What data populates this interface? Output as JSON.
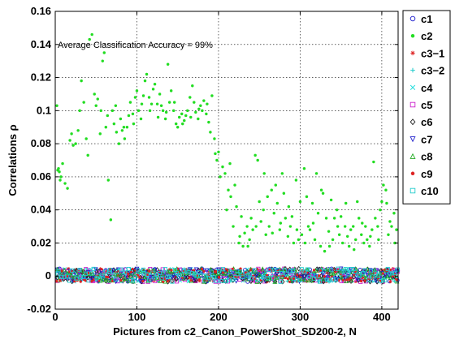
{
  "chart_data": {
    "type": "scatter",
    "xlabel": "Pictures from c2_Canon_PowerShot_SD200-2, N",
    "ylabel": "Correlations ρ",
    "annotation": "Average Classification Accuracy = 99%",
    "xlim": [
      0,
      420
    ],
    "ylim": [
      -0.02,
      0.16
    ],
    "xticks": [
      0,
      100,
      200,
      300,
      400
    ],
    "yticks": [
      -0.02,
      0,
      0.02,
      0.04,
      0.06,
      0.08,
      0.1,
      0.12,
      0.14,
      0.16
    ],
    "xtick_labels": [
      "0",
      "100",
      "200",
      "300",
      "400"
    ],
    "ytick_labels": [
      "-0.02",
      "0",
      "0.02",
      "0.04",
      "0.06",
      "0.08",
      "0.1",
      "0.12",
      "0.14",
      "0.16"
    ],
    "grid": true,
    "legend_position": "right-outside",
    "series": [
      {
        "name": "c1",
        "marker": "circle",
        "color": "#1a1acc"
      },
      {
        "name": "c2",
        "marker": "dot",
        "color": "#22dd22"
      },
      {
        "name": "c3−1",
        "marker": "star",
        "color": "#dd2222"
      },
      {
        "name": "c3−2",
        "marker": "plus",
        "color": "#22cccc"
      },
      {
        "name": "c4",
        "marker": "cross",
        "color": "#22dddd"
      },
      {
        "name": "c5",
        "marker": "square",
        "color": "#cc22cc"
      },
      {
        "name": "c6",
        "marker": "diamond",
        "color": "#222222"
      },
      {
        "name": "c7",
        "marker": "triangle-down",
        "color": "#2222cc"
      },
      {
        "name": "c8",
        "marker": "triangle-up",
        "color": "#22aa22"
      },
      {
        "name": "c9",
        "marker": "dot",
        "color": "#dd2222"
      },
      {
        "name": "c10",
        "marker": "square",
        "color": "#22cccc"
      }
    ],
    "c2_points": [
      [
        2,
        0.103
      ],
      [
        3,
        0.064
      ],
      [
        4,
        0.065
      ],
      [
        5,
        0.063
      ],
      [
        6,
        0.058
      ],
      [
        7,
        0.06
      ],
      [
        9,
        0.068
      ],
      [
        12,
        0.056
      ],
      [
        15,
        0.053
      ],
      [
        18,
        0.082
      ],
      [
        20,
        0.086
      ],
      [
        22,
        0.079
      ],
      [
        25,
        0.08
      ],
      [
        28,
        0.088
      ],
      [
        30,
        0.1
      ],
      [
        32,
        0.118
      ],
      [
        35,
        0.105
      ],
      [
        38,
        0.083
      ],
      [
        40,
        0.073
      ],
      [
        42,
        0.143
      ],
      [
        45,
        0.146
      ],
      [
        48,
        0.11
      ],
      [
        50,
        0.103
      ],
      [
        52,
        0.107
      ],
      [
        55,
        0.086
      ],
      [
        58,
        0.13
      ],
      [
        60,
        0.135
      ],
      [
        62,
        0.09
      ],
      [
        65,
        0.058
      ],
      [
        68,
        0.034
      ],
      [
        70,
        0.1
      ],
      [
        72,
        0.092
      ],
      [
        75,
        0.087
      ],
      [
        78,
        0.08
      ],
      [
        80,
        0.095
      ],
      [
        82,
        0.088
      ],
      [
        85,
        0.083
      ],
      [
        88,
        0.09
      ],
      [
        90,
        0.097
      ],
      [
        92,
        0.105
      ],
      [
        95,
        0.098
      ],
      [
        98,
        0.108
      ],
      [
        100,
        0.112
      ],
      [
        102,
        0.1
      ],
      [
        105,
        0.095
      ],
      [
        108,
        0.109
      ],
      [
        110,
        0.118
      ],
      [
        112,
        0.122
      ],
      [
        115,
        0.108
      ],
      [
        118,
        0.104
      ],
      [
        120,
        0.113
      ],
      [
        122,
        0.116
      ],
      [
        125,
        0.104
      ],
      [
        128,
        0.11
      ],
      [
        130,
        0.103
      ],
      [
        132,
        0.1
      ],
      [
        135,
        0.095
      ],
      [
        138,
        0.128
      ],
      [
        140,
        0.105
      ],
      [
        142,
        0.112
      ],
      [
        145,
        0.1
      ],
      [
        148,
        0.092
      ],
      [
        150,
        0.09
      ],
      [
        152,
        0.096
      ],
      [
        155,
        0.098
      ],
      [
        158,
        0.094
      ],
      [
        160,
        0.097
      ],
      [
        162,
        0.1
      ],
      [
        165,
        0.108
      ],
      [
        168,
        0.115
      ],
      [
        170,
        0.105
      ],
      [
        172,
        0.099
      ],
      [
        175,
        0.095
      ],
      [
        178,
        0.103
      ],
      [
        180,
        0.1
      ],
      [
        182,
        0.106
      ],
      [
        185,
        0.098
      ],
      [
        188,
        0.093
      ],
      [
        190,
        0.087
      ],
      [
        192,
        0.109
      ],
      [
        195,
        0.083
      ],
      [
        198,
        0.07
      ],
      [
        200,
        0.075
      ],
      [
        202,
        0.06
      ],
      [
        205,
        0.066
      ],
      [
        208,
        0.062
      ],
      [
        210,
        0.04
      ],
      [
        212,
        0.052
      ],
      [
        215,
        0.048
      ],
      [
        218,
        0.03
      ],
      [
        220,
        0.055
      ],
      [
        222,
        0.042
      ],
      [
        225,
        0.02
      ],
      [
        228,
        0.036
      ],
      [
        230,
        0.018
      ],
      [
        232,
        0.026
      ],
      [
        235,
        0.03
      ],
      [
        238,
        0.022
      ],
      [
        240,
        0.035
      ],
      [
        242,
        0.028
      ],
      [
        245,
        0.073
      ],
      [
        248,
        0.07
      ],
      [
        250,
        0.045
      ],
      [
        252,
        0.033
      ],
      [
        255,
        0.04
      ],
      [
        258,
        0.025
      ],
      [
        260,
        0.048
      ],
      [
        262,
        0.03
      ],
      [
        265,
        0.052
      ],
      [
        268,
        0.038
      ],
      [
        270,
        0.055
      ],
      [
        272,
        0.044
      ],
      [
        275,
        0.028
      ],
      [
        278,
        0.062
      ],
      [
        280,
        0.05
      ],
      [
        282,
        0.035
      ],
      [
        285,
        0.024
      ],
      [
        288,
        0.03
      ],
      [
        290,
        0.036
      ],
      [
        292,
        0.02
      ],
      [
        295,
        0.058
      ],
      [
        298,
        0.022
      ],
      [
        300,
        0.045
      ],
      [
        302,
        0.025
      ],
      [
        305,
        0.065
      ],
      [
        308,
        0.048
      ],
      [
        310,
        0.03
      ],
      [
        312,
        0.028
      ],
      [
        315,
        0.044
      ],
      [
        318,
        0.022
      ],
      [
        320,
        0.062
      ],
      [
        322,
        0.038
      ],
      [
        325,
        0.018
      ],
      [
        328,
        0.05
      ],
      [
        330,
        0.015
      ],
      [
        332,
        0.035
      ],
      [
        335,
        0.027
      ],
      [
        338,
        0.046
      ],
      [
        340,
        0.022
      ],
      [
        342,
        0.035
      ],
      [
        345,
        0.04
      ],
      [
        348,
        0.025
      ],
      [
        350,
        0.036
      ],
      [
        352,
        0.02
      ],
      [
        355,
        0.03
      ],
      [
        358,
        0.024
      ],
      [
        360,
        0.018
      ],
      [
        362,
        0.028
      ],
      [
        365,
        0.03
      ],
      [
        368,
        0.022
      ],
      [
        370,
        0.045
      ],
      [
        372,
        0.035
      ],
      [
        375,
        0.025
      ],
      [
        378,
        0.02
      ],
      [
        380,
        0.03
      ],
      [
        382,
        0.022
      ],
      [
        385,
        0.018
      ],
      [
        388,
        0.028
      ],
      [
        390,
        0.069
      ],
      [
        392,
        0.035
      ],
      [
        395,
        0.03
      ],
      [
        398,
        0.04
      ],
      [
        400,
        0.045
      ],
      [
        402,
        0.055
      ],
      [
        405,
        0.052
      ],
      [
        408,
        0.025
      ],
      [
        410,
        0.033
      ],
      [
        412,
        0.03
      ],
      [
        415,
        0.038
      ],
      [
        418,
        0.028
      ],
      [
        56,
        0.1
      ],
      [
        64,
        0.097
      ],
      [
        74,
        0.103
      ],
      [
        84,
        0.09
      ],
      [
        96,
        0.092
      ],
      [
        106,
        0.104
      ],
      [
        116,
        0.1
      ],
      [
        126,
        0.096
      ],
      [
        136,
        0.099
      ],
      [
        146,
        0.105
      ],
      [
        156,
        0.092
      ],
      [
        166,
        0.096
      ],
      [
        176,
        0.101
      ],
      [
        186,
        0.104
      ],
      [
        196,
        0.074
      ],
      [
        214,
        0.068
      ],
      [
        226,
        0.024
      ],
      [
        236,
        0.018
      ],
      [
        246,
        0.03
      ],
      [
        256,
        0.062
      ],
      [
        266,
        0.026
      ],
      [
        276,
        0.032
      ],
      [
        286,
        0.042
      ],
      [
        296,
        0.028
      ],
      [
        306,
        0.02
      ],
      [
        316,
        0.032
      ],
      [
        326,
        0.052
      ],
      [
        336,
        0.018
      ],
      [
        346,
        0.03
      ],
      [
        356,
        0.044
      ],
      [
        366,
        0.016
      ],
      [
        376,
        0.032
      ],
      [
        386,
        0.024
      ],
      [
        396,
        0.022
      ],
      [
        406,
        0.044
      ],
      [
        416,
        0.02
      ]
    ]
  }
}
